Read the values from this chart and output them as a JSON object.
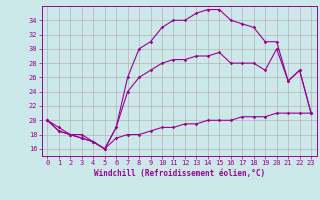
{
  "xlabel": "Windchill (Refroidissement éolien,°C)",
  "bg_color": "#cce8e8",
  "line_color": "#990099",
  "grid_color": "#aaaaaa",
  "xlim": [
    -0.5,
    23.5
  ],
  "ylim": [
    15.0,
    36.0
  ],
  "yticks": [
    16,
    18,
    20,
    22,
    24,
    26,
    28,
    30,
    32,
    34
  ],
  "xticks": [
    0,
    1,
    2,
    3,
    4,
    5,
    6,
    7,
    8,
    9,
    10,
    11,
    12,
    13,
    14,
    15,
    16,
    17,
    18,
    19,
    20,
    21,
    22,
    23
  ],
  "series1_x": [
    0,
    1,
    2,
    3,
    4,
    5,
    6,
    7,
    8,
    9,
    10,
    11,
    12,
    13,
    14,
    15,
    16,
    17,
    18,
    19,
    20,
    21,
    22,
    23
  ],
  "series1_y": [
    20,
    19,
    18,
    18,
    17,
    16,
    17.5,
    18,
    18,
    18.5,
    19,
    19,
    19.5,
    19.5,
    20,
    20,
    20,
    20.5,
    20.5,
    20.5,
    21,
    21,
    21,
    21
  ],
  "series2_x": [
    0,
    1,
    2,
    3,
    4,
    5,
    6,
    7,
    8,
    9,
    10,
    11,
    12,
    13,
    14,
    15,
    16,
    17,
    18,
    19,
    20,
    21,
    22,
    23
  ],
  "series2_y": [
    20,
    18.5,
    18,
    17.5,
    17,
    16,
    19,
    26,
    30,
    31,
    33,
    34,
    34,
    35,
    35.5,
    35.5,
    34,
    33.5,
    33,
    31,
    31,
    25.5,
    27,
    21
  ],
  "series3_x": [
    0,
    1,
    2,
    3,
    4,
    5,
    6,
    7,
    8,
    9,
    10,
    11,
    12,
    13,
    14,
    15,
    16,
    17,
    18,
    19,
    20,
    21,
    22,
    23
  ],
  "series3_y": [
    20,
    18.5,
    18,
    17.5,
    17,
    16,
    19,
    24,
    26,
    27,
    28,
    28.5,
    28.5,
    29,
    29,
    29.5,
    28,
    28,
    28,
    27,
    30,
    25.5,
    27,
    21
  ]
}
